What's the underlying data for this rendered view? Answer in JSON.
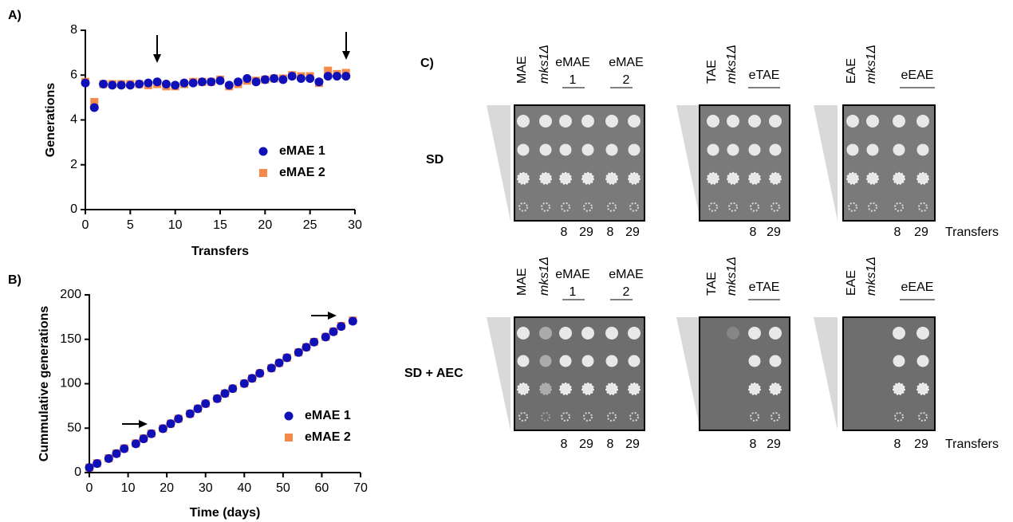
{
  "chart_data": [
    {
      "type": "scatter",
      "panel_label": "A)",
      "x_label": "Transfers",
      "y_label": "Generations",
      "x": [
        0,
        1,
        2,
        3,
        4,
        5,
        6,
        7,
        8,
        9,
        10,
        11,
        12,
        13,
        14,
        15,
        16,
        17,
        18,
        19,
        20,
        21,
        22,
        23,
        24,
        25,
        26,
        27,
        28,
        29
      ],
      "series": [
        {
          "name": "eMAE 1",
          "color": "#1010b8",
          "marker": "circle",
          "values": [
            5.65,
            4.55,
            5.6,
            5.55,
            5.55,
            5.55,
            5.6,
            5.65,
            5.7,
            5.6,
            5.55,
            5.65,
            5.65,
            5.7,
            5.7,
            5.75,
            5.55,
            5.7,
            5.85,
            5.7,
            5.8,
            5.85,
            5.8,
            5.95,
            5.85,
            5.85,
            5.7,
            5.95,
            5.95,
            5.95
          ]
        },
        {
          "name": "eMAE 2",
          "color": "#f5894a",
          "marker": "square",
          "values": [
            5.7,
            4.8,
            5.6,
            5.6,
            5.6,
            5.6,
            5.6,
            5.55,
            5.6,
            5.5,
            5.5,
            5.6,
            5.7,
            5.7,
            5.7,
            5.8,
            5.5,
            5.6,
            5.75,
            5.75,
            5.8,
            5.85,
            5.85,
            6.0,
            5.95,
            5.95,
            5.65,
            6.2,
            6.05,
            6.1
          ]
        }
      ],
      "xlim": [
        0,
        30
      ],
      "xticks": [
        0,
        5,
        10,
        15,
        20,
        25,
        30
      ],
      "ylim": [
        0,
        8
      ],
      "yticks": [
        0,
        2,
        4,
        6,
        8
      ]
    },
    {
      "type": "scatter",
      "panel_label": "B)",
      "x_label": "Time (days)",
      "y_label": "Cummulative generations",
      "x": [
        0,
        2,
        5,
        7,
        9,
        12,
        14,
        16,
        19,
        21,
        23,
        26,
        28,
        30,
        33,
        35,
        37,
        40,
        42,
        44,
        47,
        49,
        51,
        54,
        56,
        58,
        61,
        63,
        65,
        68
      ],
      "series": [
        {
          "name": "eMAE 1",
          "color": "#1010b8",
          "marker": "circle",
          "values": [
            5.65,
            10.2,
            15.8,
            21.35,
            26.9,
            32.45,
            38.05,
            43.7,
            49.4,
            55.0,
            60.55,
            66.2,
            71.85,
            77.55,
            83.25,
            89.0,
            94.55,
            100.25,
            106.1,
            111.8,
            117.6,
            123.45,
            129.25,
            135.2,
            141.05,
            146.9,
            152.6,
            158.55,
            164.5,
            170.45
          ]
        },
        {
          "name": "eMAE 2",
          "color": "#f5894a",
          "marker": "square",
          "values": [
            5.7,
            10.5,
            16.1,
            21.7,
            27.3,
            32.9,
            38.5,
            44.05,
            49.65,
            55.15,
            60.65,
            66.25,
            71.95,
            77.65,
            83.35,
            89.15,
            94.65,
            100.25,
            106.0,
            111.75,
            117.55,
            123.4,
            129.25,
            135.25,
            141.2,
            147.15,
            152.8,
            159.0,
            165.05,
            171.15
          ]
        }
      ],
      "xlim": [
        0,
        70
      ],
      "xticks": [
        0,
        10,
        20,
        30,
        40,
        50,
        60,
        70
      ],
      "ylim": [
        0,
        200
      ],
      "yticks": [
        0,
        50,
        100,
        150,
        200
      ]
    }
  ],
  "panel_c": {
    "label": "C)",
    "rows": [
      {
        "label": "SD",
        "transfers_label": "Transfers",
        "groups": [
          {
            "headers": [
              {
                "text": "MAE"
              },
              {
                "text": "mks1Δ"
              },
              {
                "text": "eMAE",
                "sub": "1"
              },
              {
                "text": "eMAE",
                "sub": "2"
              }
            ],
            "transfers": [
              "8",
              "29",
              "8",
              "29"
            ]
          },
          {
            "headers": [
              {
                "text": "TAE"
              },
              {
                "text": "mks1Δ"
              },
              {
                "text": "eTAE"
              }
            ],
            "transfers": [
              "8",
              "29"
            ]
          },
          {
            "headers": [
              {
                "text": "EAE"
              },
              {
                "text": "mks1Δ"
              },
              {
                "text": "eEAE"
              }
            ],
            "transfers": [
              "8",
              "29"
            ]
          }
        ]
      },
      {
        "label": "SD + AEC",
        "transfers_label": "Transfers",
        "groups": [
          {
            "headers": [
              {
                "text": "MAE"
              },
              {
                "text": "mks1Δ"
              },
              {
                "text": "eMAE",
                "sub": "1"
              },
              {
                "text": "eMAE",
                "sub": "2"
              }
            ],
            "transfers": [
              "8",
              "29",
              "8",
              "29"
            ]
          },
          {
            "headers": [
              {
                "text": "TAE"
              },
              {
                "text": "mks1Δ"
              },
              {
                "text": "eTAE"
              }
            ],
            "transfers": [
              "8",
              "29"
            ]
          },
          {
            "headers": [
              {
                "text": "EAE"
              },
              {
                "text": "mks1Δ"
              },
              {
                "text": "eEAE"
              }
            ],
            "transfers": [
              "8",
              "29"
            ]
          }
        ]
      }
    ]
  }
}
